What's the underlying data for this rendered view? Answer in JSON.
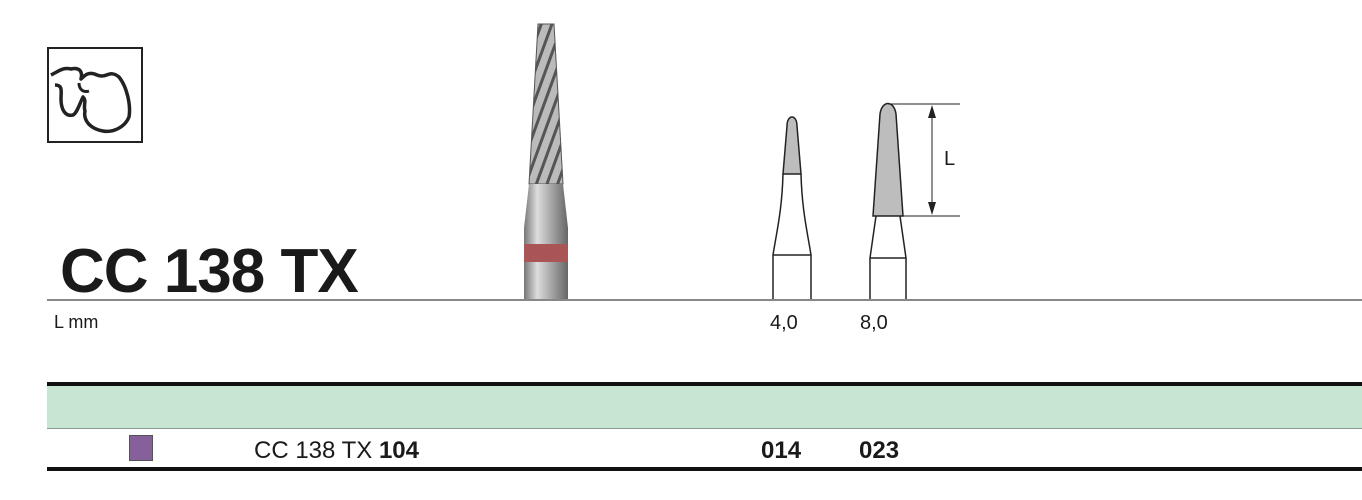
{
  "product": {
    "title": "CC 138 TX",
    "length_unit_label": "L mm",
    "dimension_label": "L"
  },
  "sizes": [
    {
      "length": "4,0",
      "code": "014"
    },
    {
      "length": "8,0",
      "code": "023"
    }
  ],
  "order": {
    "prefix": "CC 138 TX",
    "suffix": "104",
    "swatch_color": "#86609a"
  },
  "colors": {
    "band": "#c6e5d3"
  },
  "icons": [
    "tooth-pictogram-icon",
    "bur-photo",
    "bur-size-drawing"
  ]
}
